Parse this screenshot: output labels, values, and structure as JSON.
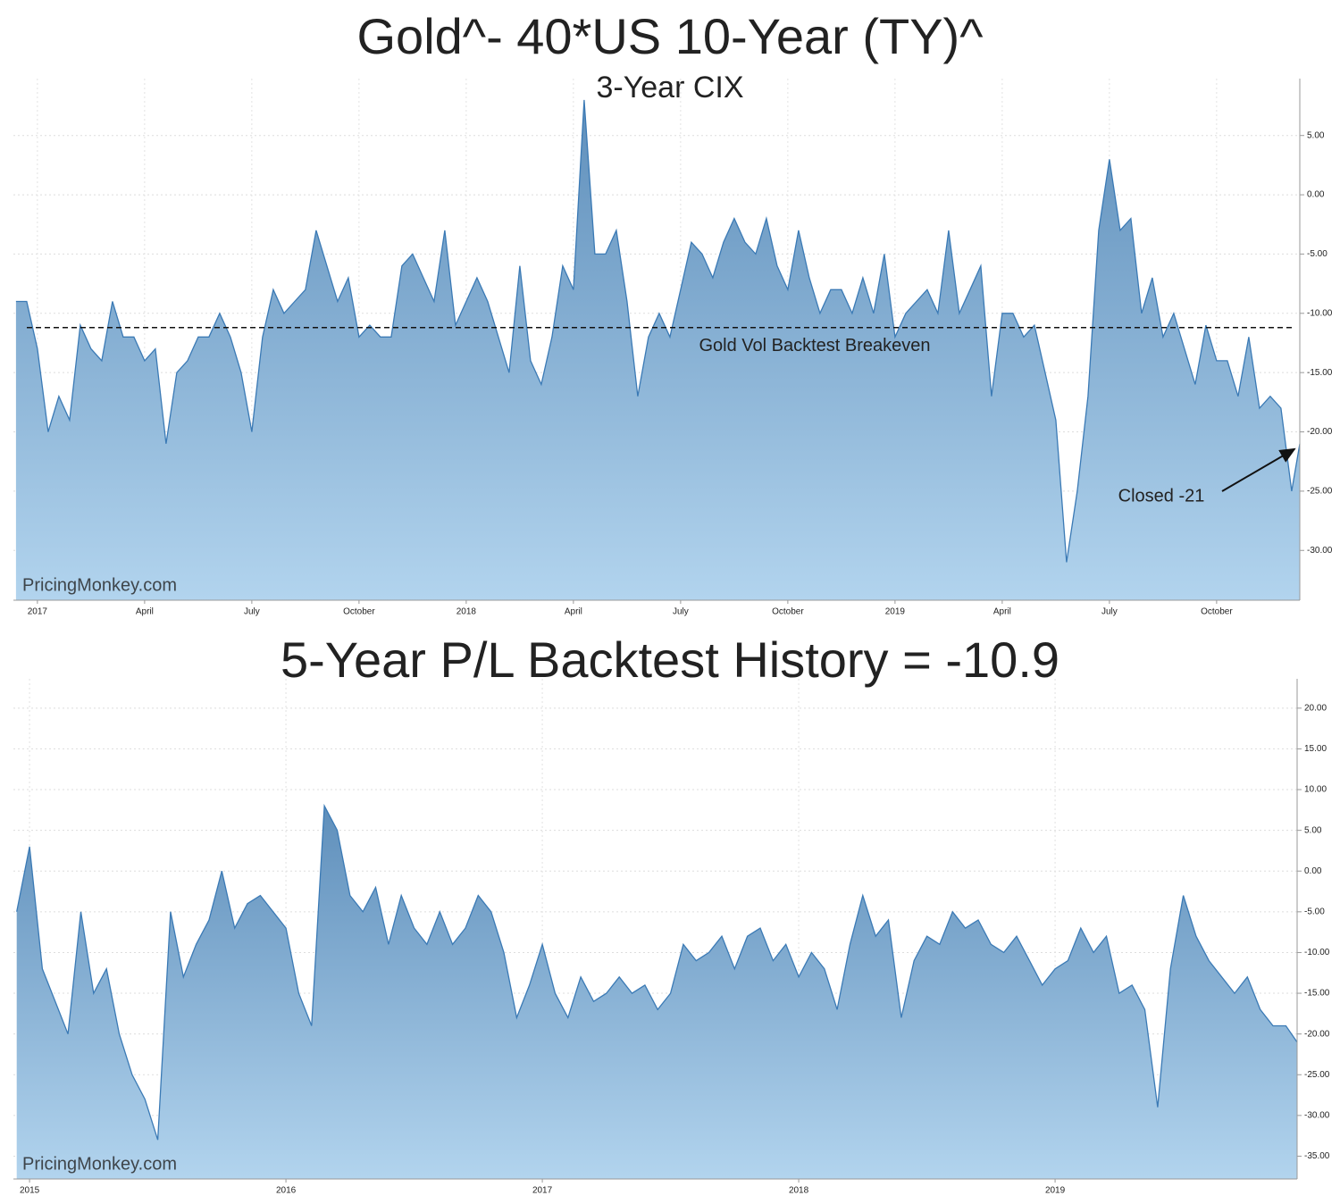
{
  "chart_data": [
    {
      "type": "area",
      "title": "Gold^- 40*US 10-Year (TY)^",
      "subtitle": "3-Year CIX",
      "watermark": "PricingMonkey.com",
      "color": "#3b7ab5",
      "grid": true,
      "x": [
        2016.95,
        2016.975,
        2017,
        2017.025,
        2017.05,
        2017.075,
        2017.1,
        2017.125,
        2017.15,
        2017.175,
        2017.2,
        2017.225,
        2017.25,
        2017.275,
        2017.3,
        2017.325,
        2017.35,
        2017.375,
        2017.4,
        2017.425,
        2017.45,
        2017.475,
        2017.5,
        2017.525,
        2017.55,
        2017.575,
        2017.6,
        2017.625,
        2017.65,
        2017.675,
        2017.7,
        2017.725,
        2017.75,
        2017.775,
        2017.8,
        2017.825,
        2017.85,
        2017.875,
        2017.9,
        2017.925,
        2017.95,
        2017.975,
        2018,
        2018.025,
        2018.05,
        2018.075,
        2018.1,
        2018.125,
        2018.15,
        2018.175,
        2018.2,
        2018.225,
        2018.25,
        2018.275,
        2018.3,
        2018.325,
        2018.35,
        2018.375,
        2018.4,
        2018.425,
        2018.45,
        2018.475,
        2018.5,
        2018.525,
        2018.55,
        2018.575,
        2018.6,
        2018.625,
        2018.65,
        2018.675,
        2018.7,
        2018.725,
        2018.75,
        2018.775,
        2018.8,
        2018.825,
        2018.85,
        2018.875,
        2018.9,
        2018.925,
        2018.95,
        2018.975,
        2019,
        2019.025,
        2019.05,
        2019.075,
        2019.1,
        2019.125,
        2019.15,
        2019.175,
        2019.2,
        2019.225,
        2019.25,
        2019.275,
        2019.3,
        2019.325,
        2019.35,
        2019.375,
        2019.4,
        2019.425,
        2019.45,
        2019.475,
        2019.5,
        2019.525,
        2019.55,
        2019.575,
        2019.6,
        2019.625,
        2019.65,
        2019.675,
        2019.7,
        2019.725,
        2019.75,
        2019.775,
        2019.8,
        2019.825,
        2019.85,
        2019.875,
        2019.9,
        2019.925,
        2019.944
      ],
      "values": [
        -9,
        -9,
        -13,
        -20,
        -17,
        -19,
        -11,
        -13,
        -14,
        -9,
        -12,
        -12,
        -14,
        -13,
        -21,
        -15,
        -14,
        -12,
        -12,
        -10,
        -12,
        -15,
        -20,
        -12,
        -8,
        -10,
        -9,
        -8,
        -3,
        -6,
        -9,
        -7,
        -12,
        -11,
        -12,
        -12,
        -6,
        -5,
        -7,
        -9,
        -3,
        -11,
        -9,
        -7,
        -9,
        -12,
        -15,
        -6,
        -14,
        -16,
        -12,
        -6,
        -8,
        8,
        -5,
        -5,
        -3,
        -9,
        -17,
        -12,
        -10,
        -12,
        -8,
        -4,
        -5,
        -7,
        -4,
        -2,
        -4,
        -5,
        -2,
        -6,
        -8,
        -3,
        -7,
        -10,
        -8,
        -8,
        -10,
        -7,
        -10,
        -5,
        -12,
        -10,
        -9,
        -8,
        -10,
        -3,
        -10,
        -8,
        -6,
        -17,
        -10,
        -10,
        -12,
        -11,
        -15,
        -19,
        -31,
        -25,
        -17,
        -3,
        3,
        -3,
        -2,
        -10,
        -7,
        -12,
        -10,
        -13,
        -16,
        -11,
        -14,
        -14,
        -17,
        -12,
        -18,
        -17,
        -18,
        -25,
        -21
      ],
      "xlim": [
        2016.944,
        2019.944
      ],
      "xticks": [
        2017,
        {
          "value": 2017.25,
          "label": "April"
        },
        {
          "value": 2017.5,
          "label": "July"
        },
        {
          "value": 2017.75,
          "label": "October"
        },
        2018,
        {
          "value": 2018.25,
          "label": "April"
        },
        {
          "value": 2018.5,
          "label": "July"
        },
        {
          "value": 2018.75,
          "label": "October"
        },
        2019,
        {
          "value": 2019.25,
          "label": "April"
        },
        {
          "value": 2019.5,
          "label": "July"
        },
        {
          "value": 2019.75,
          "label": "October"
        }
      ],
      "ylim": [
        -34.2,
        9.8
      ],
      "yticks": [
        {
          "value": 5,
          "label": "5.00"
        },
        {
          "value": 0,
          "label": "0.00"
        },
        {
          "value": -5,
          "label": "-5.00"
        },
        {
          "value": -10,
          "label": "-10.00"
        },
        {
          "value": -15,
          "label": "-15.00"
        },
        {
          "value": -20,
          "label": "-20.00"
        },
        {
          "value": -25,
          "label": "-25.00"
        },
        {
          "value": -30,
          "label": "-30.00"
        }
      ],
      "reference_line": {
        "value": -11.2,
        "label": "Gold Vol Backtest Breakeven"
      },
      "annotation": "Closed -21"
    },
    {
      "type": "area",
      "title": "5-Year P/L Backtest History = -10.9",
      "watermark": "PricingMonkey.com",
      "color": "#3b7ab5",
      "grid": true,
      "x": [
        2014.95,
        2015,
        2015.05,
        2015.1,
        2015.15,
        2015.2,
        2015.25,
        2015.3,
        2015.35,
        2015.4,
        2015.45,
        2015.5,
        2015.55,
        2015.6,
        2015.65,
        2015.7,
        2015.75,
        2015.8,
        2015.85,
        2015.9,
        2015.95,
        2016,
        2016.05,
        2016.1,
        2016.15,
        2016.2,
        2016.25,
        2016.3,
        2016.35,
        2016.4,
        2016.45,
        2016.5,
        2016.55,
        2016.6,
        2016.65,
        2016.7,
        2016.75,
        2016.8,
        2016.85,
        2016.9,
        2016.95,
        2017,
        2017.05,
        2017.1,
        2017.15,
        2017.2,
        2017.25,
        2017.3,
        2017.35,
        2017.4,
        2017.45,
        2017.5,
        2017.55,
        2017.6,
        2017.65,
        2017.7,
        2017.75,
        2017.8,
        2017.85,
        2017.9,
        2017.95,
        2018,
        2018.05,
        2018.1,
        2018.15,
        2018.2,
        2018.25,
        2018.3,
        2018.35,
        2018.4,
        2018.45,
        2018.5,
        2018.55,
        2018.6,
        2018.65,
        2018.7,
        2018.75,
        2018.8,
        2018.85,
        2018.9,
        2018.95,
        2019,
        2019.05,
        2019.1,
        2019.15,
        2019.2,
        2019.25,
        2019.3,
        2019.35,
        2019.4,
        2019.45,
        2019.5,
        2019.55,
        2019.6,
        2019.65,
        2019.7,
        2019.75,
        2019.8,
        2019.85,
        2019.9,
        2019.944
      ],
      "values": [
        -5,
        3,
        -12,
        -16,
        -20,
        -5,
        -15,
        -12,
        -20,
        -25,
        -28,
        -33,
        -5,
        -13,
        -9,
        -6,
        0,
        -7,
        -4,
        -3,
        -5,
        -7,
        -15,
        -19,
        8,
        5,
        -3,
        -5,
        -2,
        -9,
        -3,
        -7,
        -9,
        -5,
        -9,
        -7,
        -3,
        -5,
        -10,
        -18,
        -14,
        -9,
        -15,
        -18,
        -13,
        -16,
        -15,
        -13,
        -15,
        -14,
        -17,
        -15,
        -9,
        -11,
        -10,
        -8,
        -12,
        -8,
        -7,
        -11,
        -9,
        -13,
        -10,
        -12,
        -17,
        -9,
        -3,
        -8,
        -6,
        -18,
        -11,
        -8,
        -9,
        -5,
        -7,
        -6,
        -9,
        -10,
        -8,
        -11,
        -14,
        -12,
        -11,
        -7,
        -10,
        -8,
        -15,
        -14,
        -17,
        -29,
        -12,
        -3,
        -8,
        -11,
        -13,
        -15,
        -13,
        -17,
        -19,
        -19,
        -21
      ],
      "xlim": [
        2014.937,
        2019.944
      ],
      "xticks": [
        2015,
        2016,
        2017,
        2018,
        2019
      ],
      "ylim": [
        -37.8,
        23.6
      ],
      "yticks": [
        {
          "value": 20,
          "label": "20.00"
        },
        {
          "value": 15,
          "label": "15.00"
        },
        {
          "value": 10,
          "label": "10.00"
        },
        {
          "value": 5,
          "label": "5.00"
        },
        {
          "value": 0,
          "label": "0.00"
        },
        {
          "value": -5,
          "label": "-5.00"
        },
        {
          "value": -10,
          "label": "-10.00"
        },
        {
          "value": -15,
          "label": "-15.00"
        },
        {
          "value": -20,
          "label": "-20.00"
        },
        {
          "value": -25,
          "label": "-25.00"
        },
        {
          "value": -30,
          "label": "-30.00"
        },
        {
          "value": -35,
          "label": "-35.00"
        }
      ]
    }
  ]
}
